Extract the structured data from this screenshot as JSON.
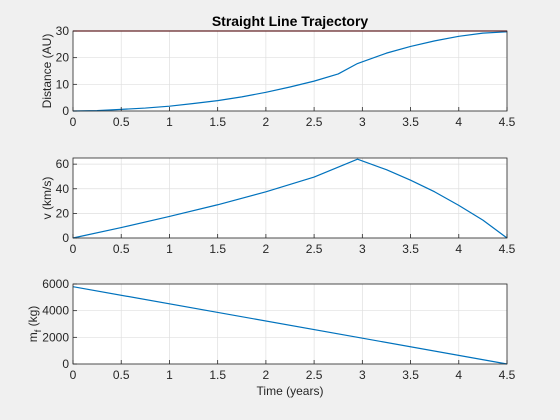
{
  "figure": {
    "background": "#f0f0f0",
    "axes_background": "#ffffff",
    "line_color": "#0072bd",
    "ref_line_color": "#d62728",
    "grid_color": "#dfdfdf"
  },
  "chart_data": [
    {
      "type": "line",
      "title": "Straight Line Trajectory",
      "xlabel": "",
      "ylabel": "Distance (AU)",
      "xlim": [
        0,
        4.5
      ],
      "ylim": [
        0,
        30
      ],
      "xticks": [
        "0",
        "0.5",
        "1",
        "1.5",
        "2",
        "2.5",
        "3",
        "3.5",
        "4",
        "4.5"
      ],
      "yticks": [
        "0",
        "10",
        "20",
        "30"
      ],
      "grid": true,
      "series": [
        {
          "color": "#0072bd",
          "x": [
            0,
            0.25,
            0.5,
            0.75,
            1.0,
            1.25,
            1.5,
            1.75,
            2.0,
            2.25,
            2.5,
            2.75,
            2.95,
            3.25,
            3.5,
            3.75,
            4.0,
            4.25,
            4.5
          ],
          "y": [
            0,
            0.15,
            0.6,
            1.1,
            1.8,
            2.8,
            3.9,
            5.3,
            7.0,
            9.0,
            11.2,
            13.9,
            17.8,
            21.7,
            24.2,
            26.3,
            28.0,
            29.2,
            29.7
          ]
        },
        {
          "color": "#d62728",
          "x": [
            0,
            4.5
          ],
          "y": [
            30,
            30
          ]
        }
      ]
    },
    {
      "type": "line",
      "title": "",
      "xlabel": "",
      "ylabel": "v (km/s)",
      "xlim": [
        0,
        4.5
      ],
      "ylim": [
        0,
        65
      ],
      "xticks": [
        "0",
        "0.5",
        "1",
        "1.5",
        "2",
        "2.5",
        "3",
        "3.5",
        "4",
        "4.5"
      ],
      "yticks": [
        "0",
        "20",
        "40",
        "60"
      ],
      "grid": true,
      "series": [
        {
          "color": "#0072bd",
          "x": [
            0,
            0.5,
            1.0,
            1.5,
            2.0,
            2.5,
            2.95,
            3.25,
            3.5,
            3.75,
            4.0,
            4.25,
            4.5
          ],
          "y": [
            0,
            8.5,
            17.5,
            27.0,
            37.5,
            49.5,
            64.0,
            55.5,
            47.0,
            37.5,
            26.5,
            14.5,
            0
          ]
        }
      ]
    },
    {
      "type": "line",
      "title": "",
      "xlabel": "Time (years)",
      "ylabel": "m",
      "ylabel_subscript": "f",
      "ylabel_suffix": " (kg)",
      "xlim": [
        0,
        4.5
      ],
      "ylim": [
        0,
        6000
      ],
      "xticks": [
        "0",
        "0.5",
        "1",
        "1.5",
        "2",
        "2.5",
        "3",
        "3.5",
        "4",
        "4.5"
      ],
      "yticks": [
        "0",
        "2000",
        "4000",
        "6000"
      ],
      "grid": true,
      "series": [
        {
          "color": "#0072bd",
          "x": [
            0,
            2.95,
            4.5
          ],
          "y": [
            5800,
            2000,
            0
          ]
        }
      ]
    }
  ]
}
